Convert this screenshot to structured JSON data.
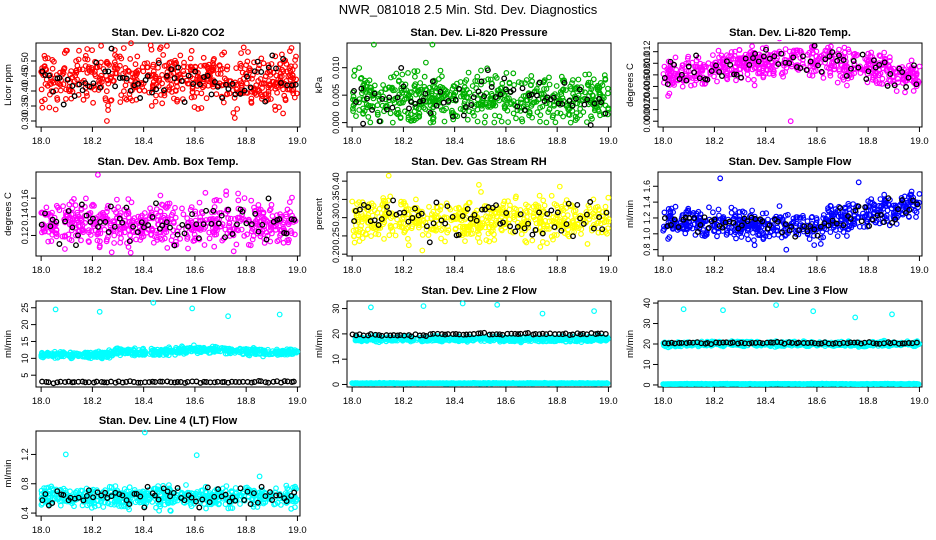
{
  "title": "NWR_081018  2.5 Min. Std. Dev. Diagnostics",
  "chart_data": [
    {
      "id": "co2",
      "type": "scatter",
      "title": "Stan. Dev. Li-820 CO2",
      "ylabel": "Licor ppm",
      "xlim": [
        17.98,
        19.01
      ],
      "ylim": [
        0.28,
        0.56
      ],
      "xticks": [
        "18.0",
        "18.2",
        "18.4",
        "18.6",
        "18.8",
        "19.0"
      ],
      "yticks": [
        "0.30",
        "0.35",
        "0.40",
        "0.45",
        "0.50"
      ],
      "color": "#ff0000",
      "secondary_color": "#000000",
      "center": 0.44,
      "spread": 0.045,
      "trend": 0.0,
      "outliers_high": [
        0.54,
        0.55,
        0.53
      ],
      "outliers_low": [
        0.3,
        0.31
      ]
    },
    {
      "id": "pressure",
      "type": "scatter",
      "title": "Stan. Dev. Li-820 Pressure",
      "ylabel": "kPa",
      "xlim": [
        17.98,
        19.01
      ],
      "ylim": [
        -0.0008,
        0.0145
      ],
      "xticks": [
        "18.0",
        "18.2",
        "18.4",
        "18.6",
        "18.8",
        "19.0"
      ],
      "yticks": [
        "0.000",
        "0.005",
        "0.010"
      ],
      "color": "#00b000",
      "secondary_color": "#000000",
      "center": 0.0045,
      "spread": 0.0022,
      "trend": 0.0,
      "outliers_high": [
        0.0142,
        0.0142,
        0.0095,
        0.0085,
        0.0088
      ],
      "outliers_low": [
        0.0,
        0.0,
        0.0
      ]
    },
    {
      "id": "temp",
      "type": "scatter",
      "title": "Stan. Dev. Li-820 Temp.",
      "ylabel": "degrees C",
      "xlim": [
        17.98,
        19.01
      ],
      "ylim": [
        -0.001,
        0.0135
      ],
      "xticks": [
        "18.0",
        "18.2",
        "18.4",
        "18.6",
        "18.8",
        "19.0"
      ],
      "yticks": [
        "0.000",
        "0.002",
        "0.004",
        "0.006",
        "0.008",
        "0.010",
        "0.012"
      ],
      "color": "#ff00ff",
      "secondary_color": "#000000",
      "center": 0.0075,
      "spread": 0.0014,
      "trend": 0.003,
      "outliers_high": [
        0.0122
      ],
      "outliers_low": [
        0.0
      ]
    },
    {
      "id": "ambbox",
      "type": "scatter",
      "title": "Stan. Dev. Amb. Box Temp.",
      "ylabel": "degrees C",
      "xlim": [
        17.98,
        19.01
      ],
      "ylim": [
        0.098,
        0.188
      ],
      "xticks": [
        "18.0",
        "18.2",
        "18.4",
        "18.6",
        "18.8",
        "19.0"
      ],
      "yticks": [
        "0.12",
        "0.14",
        "0.16"
      ],
      "color": "#ff00ff",
      "secondary_color": "#000000",
      "center": 0.133,
      "spread": 0.012,
      "trend": 0.0,
      "outliers_high": [
        0.185,
        0.165
      ],
      "outliers_low": [
        0.102,
        0.103
      ]
    },
    {
      "id": "rh",
      "type": "scatter",
      "title": "Stan. Dev. Gas Stream RH",
      "ylabel": "percent",
      "xlim": [
        17.98,
        19.01
      ],
      "ylim": [
        0.195,
        0.425
      ],
      "xticks": [
        "18.0",
        "18.2",
        "18.4",
        "18.6",
        "18.8",
        "19.0"
      ],
      "yticks": [
        "0.20",
        "0.25",
        "0.30",
        "0.35",
        "0.40"
      ],
      "color": "#ffff00",
      "secondary_color": "#000000",
      "center": 0.295,
      "spread": 0.028,
      "trend": 0.0,
      "outliers_high": [
        0.415,
        0.39,
        0.385
      ],
      "outliers_low": [
        0.21,
        0.22
      ]
    },
    {
      "id": "sampleflow",
      "type": "scatter",
      "title": "Stan. Dev. Sample Flow",
      "ylabel": "ml/min",
      "xlim": [
        17.98,
        19.01
      ],
      "ylim": [
        0.72,
        1.78
      ],
      "xticks": [
        "18.0",
        "18.2",
        "18.4",
        "18.6",
        "18.8",
        "19.0"
      ],
      "yticks": [
        "0.8",
        "1.0",
        "1.2",
        "1.4",
        "1.6"
      ],
      "color": "#0000ff",
      "secondary_color": "#000000",
      "center": 1.15,
      "spread": 0.09,
      "trend": 0.25,
      "outliers_high": [
        1.7,
        1.65
      ],
      "outliers_low": [
        0.8
      ]
    },
    {
      "id": "line1",
      "type": "scatter",
      "title": "Stan. Dev. Line 1 Flow",
      "ylabel": "ml/min",
      "xlim": [
        17.98,
        19.01
      ],
      "ylim": [
        1.5,
        27.0
      ],
      "xticks": [
        "18.0",
        "18.2",
        "18.4",
        "18.6",
        "18.8",
        "19.0"
      ],
      "yticks": [
        "5",
        "10",
        "15",
        "20",
        "25"
      ],
      "color": "#00ffff",
      "secondary_color": "#000000",
      "center": 11.0,
      "spread": 0.5,
      "trend": 2.0,
      "band_secondary": 3.0,
      "outliers_high": [
        24.5,
        23.8,
        26.5,
        24.8,
        22.5,
        23.0
      ],
      "outliers_low": []
    },
    {
      "id": "line2",
      "type": "scatter",
      "title": "Stan. Dev. Line 2 Flow",
      "ylabel": "ml/min",
      "xlim": [
        17.98,
        19.01
      ],
      "ylim": [
        -1.0,
        33.0
      ],
      "xticks": [
        "18.0",
        "18.2",
        "18.4",
        "18.6",
        "18.8",
        "19.0"
      ],
      "yticks": [
        "0",
        "10",
        "20",
        "30"
      ],
      "color": "#00ffff",
      "secondary_color": "#000000",
      "center": 18.0,
      "spread": 0.5,
      "trend": 0.0,
      "band_secondary": 19.5,
      "zero_band": 0.5,
      "outliers_high": [
        30.5,
        31.0,
        32.0,
        31.5,
        28.0,
        29.0
      ],
      "outliers_low": []
    },
    {
      "id": "line3",
      "type": "scatter",
      "title": "Stan. Dev. Line 3 Flow",
      "ylabel": "ml/min",
      "xlim": [
        17.98,
        19.01
      ],
      "ylim": [
        -1.0,
        41.0
      ],
      "xticks": [
        "18.0",
        "18.2",
        "18.4",
        "18.6",
        "18.8",
        "19.0"
      ],
      "yticks": [
        "0",
        "10",
        "20",
        "30",
        "40"
      ],
      "color": "#00ffff",
      "secondary_color": "#000000",
      "center": 20.0,
      "spread": 0.6,
      "trend": 0.0,
      "band_secondary": 20.5,
      "zero_band": 0.5,
      "outliers_high": [
        37.0,
        36.5,
        39.0,
        36.0,
        33.0,
        34.5
      ],
      "outliers_low": []
    },
    {
      "id": "line4",
      "type": "scatter",
      "title": "Stan. Dev. Line 4 (LT) Flow",
      "ylabel": "ml/min",
      "xlim": [
        17.98,
        19.01
      ],
      "ylim": [
        0.36,
        1.52
      ],
      "xticks": [
        "18.0",
        "18.2",
        "18.4",
        "18.6",
        "18.8",
        "19.0"
      ],
      "yticks": [
        "0.4",
        "0.8",
        "1.2"
      ],
      "color": "#00ffff",
      "secondary_color": "#000000",
      "center": 0.62,
      "spread": 0.07,
      "trend": 0.0,
      "outliers_high": [
        1.2,
        1.5,
        1.19,
        0.9
      ],
      "outliers_low": [
        0.43
      ]
    }
  ]
}
